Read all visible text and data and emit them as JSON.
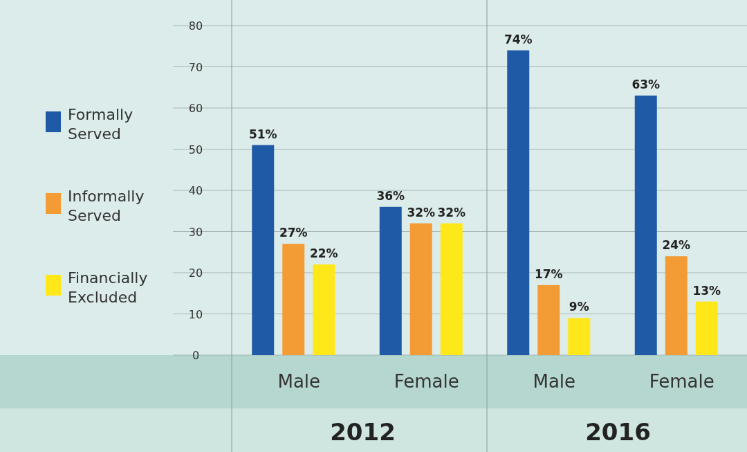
{
  "chart_data": {
    "type": "bar",
    "categories": [
      "Male",
      "Female",
      "Male",
      "Female"
    ],
    "series": [
      {
        "name": "Formally Served",
        "color": "#1f5aa6",
        "values": [
          51,
          36,
          74,
          63
        ],
        "value_labels": [
          "51%",
          "36%",
          "74%",
          "63%"
        ]
      },
      {
        "name": "Informally Served",
        "color": "#f39c35",
        "values": [
          27,
          32,
          17,
          24
        ],
        "value_labels": [
          "27%",
          "32%",
          "17%",
          "24%"
        ]
      },
      {
        "name": "Financially Excluded",
        "color": "#ffe81a",
        "values": [
          22,
          32,
          9,
          13
        ],
        "value_labels": [
          "22%",
          "32%",
          "9%",
          "13%"
        ]
      }
    ],
    "annotations": [
      "2012",
      "2016"
    ],
    "ylim": [
      0,
      80
    ],
    "yticks": [
      0,
      10,
      20,
      30,
      40,
      50,
      60,
      70,
      80
    ],
    "grid": "y",
    "legend": "left"
  }
}
